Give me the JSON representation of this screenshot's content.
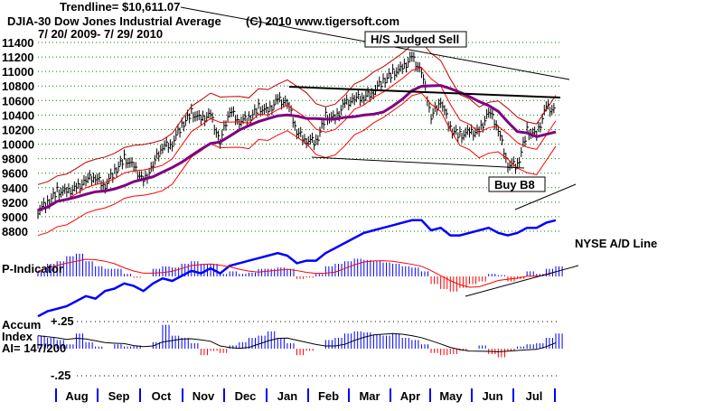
{
  "header": {
    "trendline": "Trendline= $10,611.07",
    "title": "DJIA-30  Dow Jones Industrial Average",
    "copyright": "(C) 2010 www.tigersoft.com",
    "date_range": "7/ 20/ 2009- 7/ 29/ 2010"
  },
  "annotations": {
    "hs_sell": "H/S Judged Sell",
    "buy_b8": "Buy B8",
    "ad_line": "NYSE A/D Line",
    "p_indicator": "P-Indicator",
    "accum_1": "Accum",
    "accum_2": "Index",
    "accum_3": "AI= 147/200",
    "ai_top": "+.25",
    "ai_bottom": "-.25"
  },
  "colors": {
    "price": "#000000",
    "band": "#ff0000",
    "ma": "#800080",
    "ad": "#0000ff",
    "grid": "#008000",
    "neg": "#ff0000"
  },
  "chart_data": {
    "type": "line",
    "title": "DJIA-30 Dow Jones Industrial Average",
    "ylim": [
      8800,
      11400
    ],
    "yticks": [
      11400,
      11200,
      11000,
      10800,
      10600,
      10400,
      10200,
      10000,
      9800,
      9600,
      9400,
      9200,
      9000,
      8800
    ],
    "months": [
      "Aug",
      "Sep",
      "Oct",
      "Nov",
      "Dec",
      "Jan",
      "Feb",
      "Mar",
      "Apr",
      "May",
      "Jun",
      "Jul"
    ],
    "weekly_close": [
      9093,
      9171,
      9370,
      9321,
      9398,
      9505,
      9544,
      9442,
      9605,
      9820,
      9665,
      9487,
      9712,
      9972,
      10023,
      10238,
      10451,
      10318,
      10406,
      10022,
      10471,
      10328,
      10329,
      10520,
      10428,
      10618,
      10572,
      10173,
      10067,
      10012,
      10402,
      10325,
      10566,
      10624,
      10642,
      10742,
      10850,
      10998,
      11018,
      11204,
      10998,
      10380,
      10620,
      10193,
      10136,
      10143,
      10172,
      10450,
      10211,
      9732,
      9686,
      10198,
      10097,
      10520,
      10467
    ],
    "ad_line": [
      -0.9,
      -0.7,
      -0.6,
      -0.5,
      -0.3,
      -0.1,
      -0.2,
      0.1,
      0.2,
      0.4,
      0.3,
      0.1,
      0.4,
      0.6,
      0.5,
      0.7,
      0.9,
      0.8,
      1.0,
      0.8,
      1.1,
      1.2,
      1.3,
      1.4,
      1.5,
      1.6,
      1.5,
      1.2,
      1.3,
      1.3,
      1.6,
      1.8,
      2.0,
      2.2,
      2.4,
      2.5,
      2.6,
      2.7,
      2.8,
      2.9,
      2.9,
      2.5,
      2.6,
      2.3,
      2.3,
      2.4,
      2.5,
      2.6,
      2.4,
      2.3,
      2.4,
      2.6,
      2.6,
      2.8,
      2.9
    ],
    "p_indicator": [
      0.2,
      0.5,
      0.6,
      0.8,
      0.9,
      0.6,
      0.4,
      0.3,
      0.3,
      0.1,
      -0.05,
      0.0,
      0.3,
      0.4,
      0.35,
      0.5,
      0.6,
      0.5,
      0.5,
      0.1,
      0.2,
      0.1,
      0.15,
      0.3,
      0.3,
      0.35,
      0.3,
      -0.1,
      -0.05,
      0.1,
      0.4,
      0.5,
      0.6,
      0.7,
      0.65,
      0.6,
      0.55,
      0.5,
      0.4,
      0.35,
      0.2,
      -0.3,
      -0.5,
      -0.6,
      -0.45,
      -0.3,
      -0.2,
      0.1,
      0.05,
      -0.2,
      -0.1,
      0.2,
      0.1,
      0.3,
      0.4
    ],
    "accum_index": [
      0.12,
      0.1,
      0.08,
      0.04,
      0.14,
      0.06,
      0.02,
      0.0,
      0.04,
      0.02,
      0.03,
      0.0,
      0.06,
      0.22,
      0.12,
      0.1,
      0.05,
      -0.06,
      -0.02,
      -0.04,
      0.03,
      0.06,
      0.1,
      0.12,
      0.16,
      0.1,
      0.05,
      -0.06,
      -0.02,
      0.0,
      0.08,
      0.1,
      0.14,
      0.16,
      0.15,
      0.13,
      0.12,
      0.14,
      0.1,
      0.08,
      0.04,
      -0.04,
      -0.06,
      -0.05,
      -0.02,
      0.0,
      0.03,
      -0.05,
      -0.08,
      -0.02,
      0.02,
      0.04,
      0.05,
      0.1,
      0.14
    ]
  }
}
